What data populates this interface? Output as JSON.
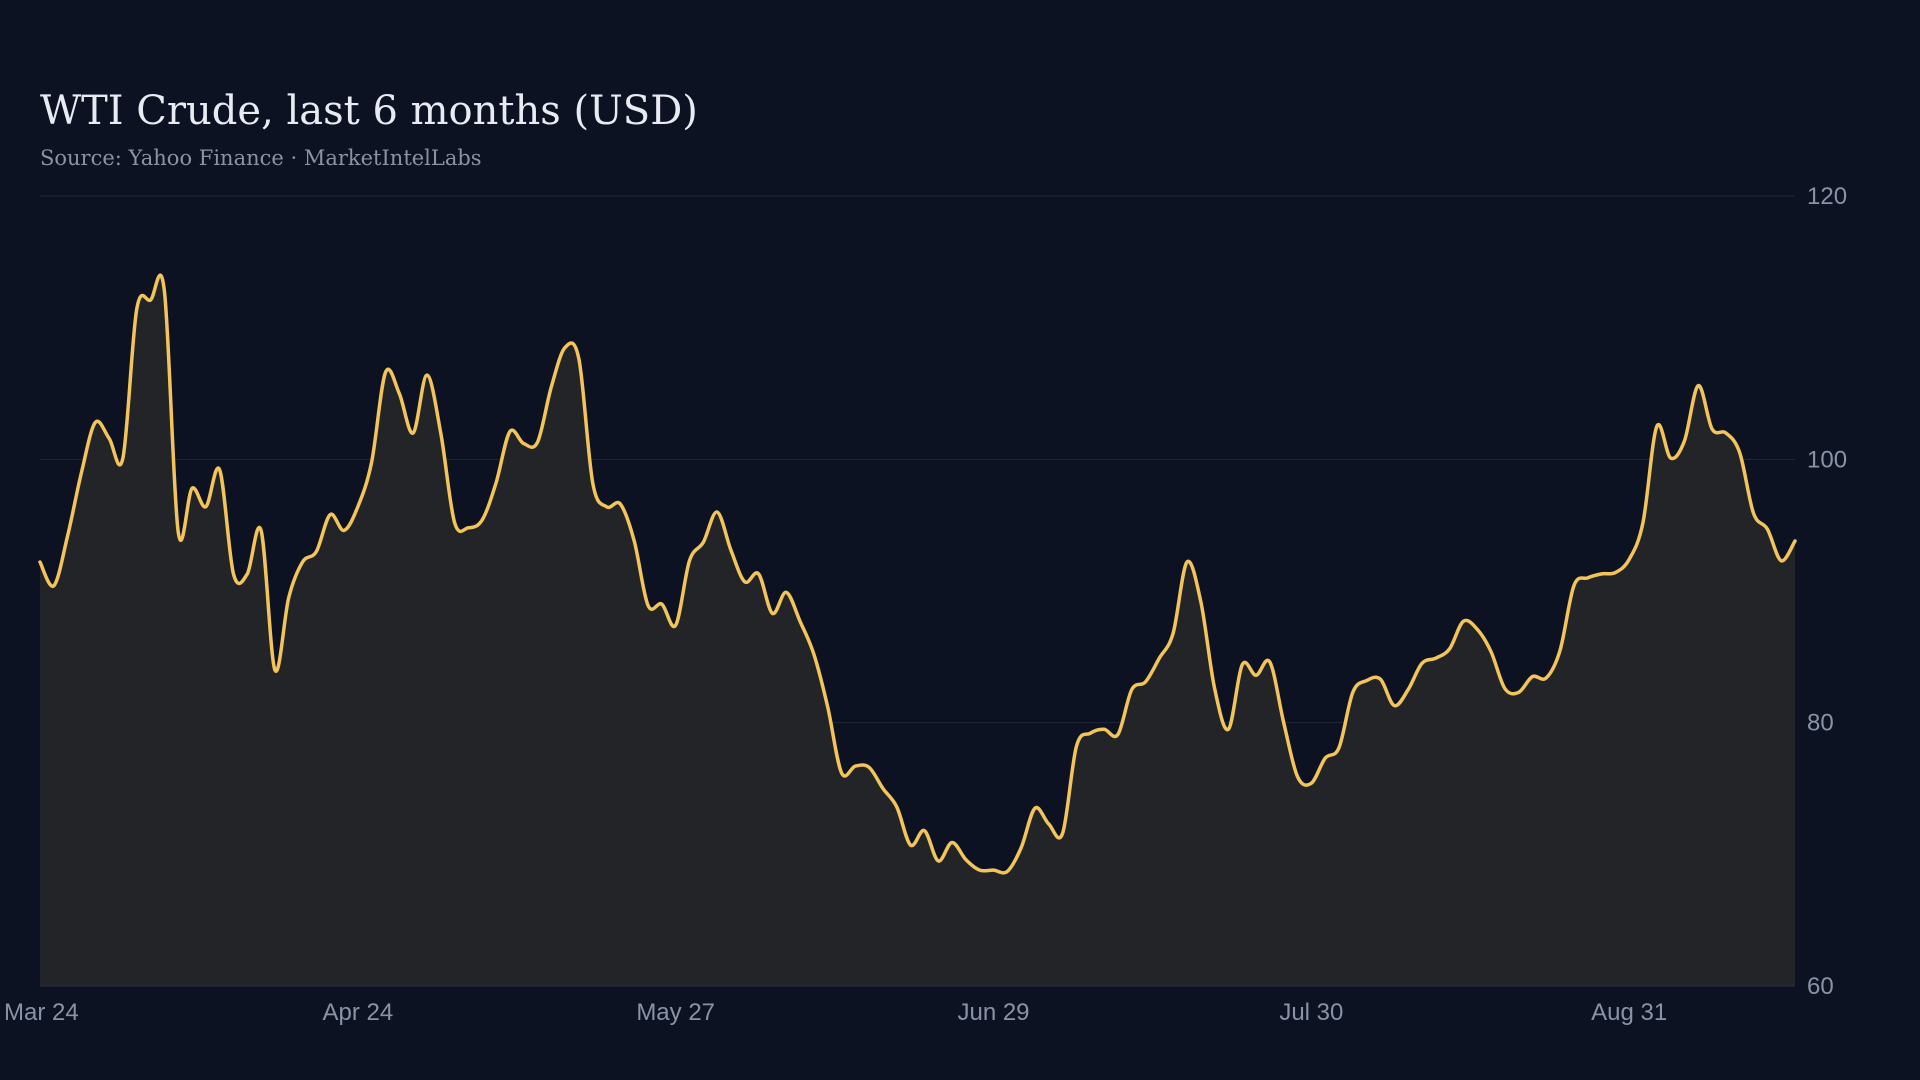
{
  "colors": {
    "background": "#0c1222",
    "line": "#f2c45a",
    "area": "#222428",
    "grid": "#1e2636",
    "text": "#e8ebf2",
    "muted": "#8a93a6"
  },
  "chart_data": {
    "type": "area",
    "title": "WTI Crude, last 6 months (USD)",
    "subtitle": "Source: Yahoo Finance · MarketIntelLabs",
    "xlabel": "",
    "ylabel": "",
    "ylim": [
      60,
      120
    ],
    "y_ticks": [
      60,
      80,
      100,
      120
    ],
    "y_axis_position": "right",
    "grid": true,
    "x_ticks": [
      {
        "label": "Mar 24",
        "index": 0
      },
      {
        "label": "Apr 24",
        "index": 23
      },
      {
        "label": "May 27",
        "index": 46
      },
      {
        "label": "Jun 29",
        "index": 69
      },
      {
        "label": "Jul 30",
        "index": 92
      },
      {
        "label": "Aug 31",
        "index": 115
      }
    ],
    "series": [
      {
        "values": [
          92.2,
          90.4,
          94.2,
          99.0,
          102.8,
          101.6,
          100.1,
          111.4,
          112.1,
          112.8,
          94.5,
          97.8,
          96.4,
          99.2,
          91.3,
          91.3,
          94.6,
          84.0,
          89.5,
          92.2,
          93.0,
          95.8,
          94.6,
          96.4,
          99.8,
          106.6,
          105.0,
          102.0,
          106.4,
          102.0,
          95.2,
          94.8,
          95.4,
          98.2,
          102.1,
          101.2,
          101.3,
          105.5,
          108.5,
          107.6,
          98.2,
          96.4,
          96.6,
          93.8,
          88.9,
          89.0,
          87.4,
          92.3,
          93.7,
          96.0,
          93.1,
          90.7,
          91.3,
          88.3,
          89.9,
          87.7,
          85.2,
          81.2,
          76.2,
          76.7,
          76.6,
          75.0,
          73.6,
          70.7,
          71.8,
          69.5,
          70.9,
          69.6,
          68.8,
          68.8,
          68.7,
          70.5,
          73.5,
          72.3,
          71.6,
          78.2,
          79.2,
          79.5,
          79.1,
          82.5,
          83.1,
          84.9,
          86.8,
          92.2,
          89.2,
          82.6,
          79.5,
          84.4,
          83.6,
          84.6,
          80.0,
          75.9,
          75.4,
          77.3,
          78.1,
          82.3,
          83.2,
          83.3,
          81.3,
          82.5,
          84.5,
          84.9,
          85.6,
          87.7,
          87.1,
          85.4,
          82.6,
          82.3,
          83.5,
          83.4,
          85.5,
          90.4,
          91.0,
          91.3,
          91.4,
          92.4,
          95.2,
          102.5,
          100.1,
          101.4,
          105.6,
          102.3,
          102.0,
          100.5,
          95.9,
          94.7,
          92.3,
          93.8
        ]
      }
    ]
  }
}
